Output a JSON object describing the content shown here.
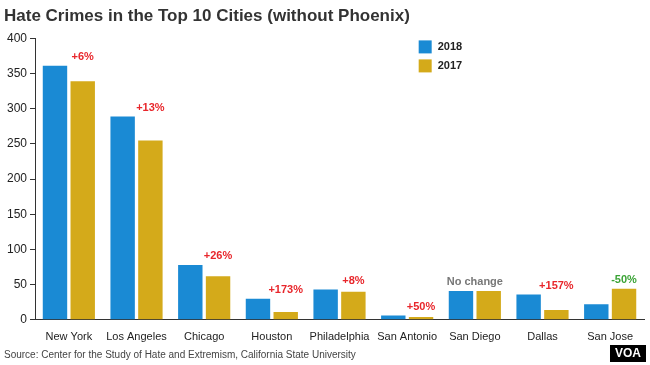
{
  "chart_data": {
    "type": "bar",
    "title": "Hate Crimes in the Top 10 Cities (without Phoenix)",
    "source": "Source: Center for the Study of Hate and Extremism, California State University",
    "credit": "VOA",
    "categories": [
      "New York",
      "Los Angeles",
      "Chicago",
      "Houston",
      "Philadelphia",
      "San Antonio",
      "San Diego",
      "Dallas",
      "San Jose"
    ],
    "series": [
      {
        "name": "2018",
        "color": "#1a8ad4",
        "values": [
          361,
          289,
          78,
          30,
          43,
          6,
          41,
          36,
          22
        ]
      },
      {
        "name": "2017",
        "color": "#d4aa1a",
        "values": [
          339,
          255,
          62,
          11,
          40,
          4,
          41,
          14,
          44
        ]
      }
    ],
    "annotations": [
      {
        "category": "New York",
        "text": "+6%",
        "color": "#e8262b"
      },
      {
        "category": "Los Angeles",
        "text": "+13%",
        "color": "#e8262b"
      },
      {
        "category": "Chicago",
        "text": "+26%",
        "color": "#e8262b"
      },
      {
        "category": "Houston",
        "text": "+173%",
        "color": "#e8262b"
      },
      {
        "category": "Philadelphia",
        "text": "+8%",
        "color": "#e8262b"
      },
      {
        "category": "San Antonio",
        "text": "+50%",
        "color": "#e8262b"
      },
      {
        "category": "San Diego",
        "text": "No change",
        "color": "#777777"
      },
      {
        "category": "Dallas",
        "text": "+157%",
        "color": "#e8262b"
      },
      {
        "category": "San Jose",
        "text": "-50%",
        "color": "#3aa335"
      }
    ],
    "ylim": [
      0,
      400
    ],
    "yticks": [
      0,
      50,
      100,
      150,
      200,
      250,
      300,
      350,
      400
    ],
    "grid": false,
    "legend": "top",
    "data_labels": false
  }
}
